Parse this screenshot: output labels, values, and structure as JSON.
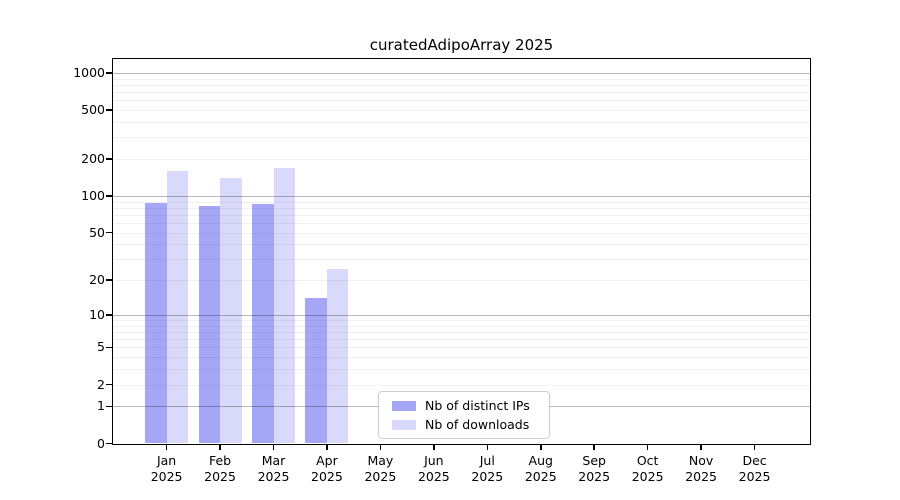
{
  "chart_data": {
    "type": "bar",
    "title": "curatedAdipoArray 2025",
    "year_label": "2025",
    "categories": [
      "Jan",
      "Feb",
      "Mar",
      "Apr",
      "May",
      "Jun",
      "Jul",
      "Aug",
      "Sep",
      "Oct",
      "Nov",
      "Dec"
    ],
    "series": [
      {
        "name": "Nb of distinct IPs",
        "color": "#a6a6f6",
        "values": [
          88,
          83,
          86,
          14,
          0,
          0,
          0,
          0,
          0,
          0,
          0,
          0
        ]
      },
      {
        "name": "Nb of downloads",
        "color": "#d8d9fb",
        "values": [
          160,
          140,
          170,
          25,
          0,
          0,
          0,
          0,
          0,
          0,
          0,
          0
        ]
      }
    ],
    "y_scale": "log10(1+x)",
    "y_ticks": [
      0,
      1,
      2,
      5,
      10,
      20,
      50,
      100,
      200,
      500,
      1000
    ],
    "y_major_gridlines": [
      1,
      10,
      100,
      1000
    ],
    "y_minor_gridlines": [
      2,
      3,
      4,
      5,
      6,
      7,
      8,
      9,
      20,
      30,
      40,
      50,
      60,
      70,
      80,
      90,
      200,
      300,
      400,
      500,
      600,
      700,
      800,
      900
    ],
    "ylim": [
      0,
      1000
    ],
    "grid": true,
    "legend_position": "bottom-center-inside"
  }
}
